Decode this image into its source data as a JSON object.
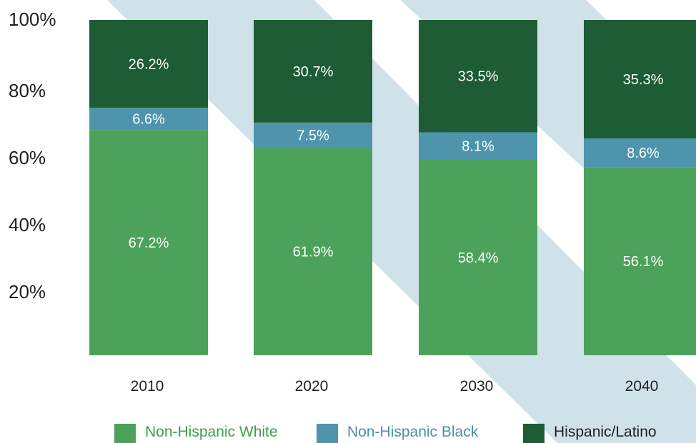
{
  "chart_data": {
    "type": "bar",
    "stacked": true,
    "categories": [
      "2010",
      "2020",
      "2030",
      "2040"
    ],
    "series": [
      {
        "name": "Non-Hispanic White",
        "values": [
          67.2,
          61.9,
          58.4,
          56.1
        ],
        "labels": [
          "67.2%",
          "61.9%",
          "58.4%",
          "56.1%"
        ],
        "color": "#4ca25a"
      },
      {
        "name": "Non-Hispanic Black",
        "values": [
          6.6,
          7.5,
          8.1,
          8.6
        ],
        "labels": [
          "6.6%",
          "7.5%",
          "8.1%",
          "8.6%"
        ],
        "color": "#4e94ad"
      },
      {
        "name": "Hispanic/Latino",
        "values": [
          26.2,
          30.7,
          33.5,
          35.3
        ],
        "labels": [
          "26.2%",
          "30.7%",
          "33.5%",
          "35.3%"
        ],
        "color": "#1d5c34"
      }
    ],
    "ylim": [
      0,
      100
    ],
    "yticks": [
      "20%",
      "40%",
      "60%",
      "80%",
      "100%"
    ],
    "ytick_values": [
      20,
      40,
      60,
      80,
      100
    ],
    "legend_position": "bottom",
    "legend_text_colors": [
      "#3e9c4c",
      "#4a8fa6",
      "#1f1f1f"
    ],
    "background_stripe_color": "#cfe2ea",
    "grid": false
  }
}
